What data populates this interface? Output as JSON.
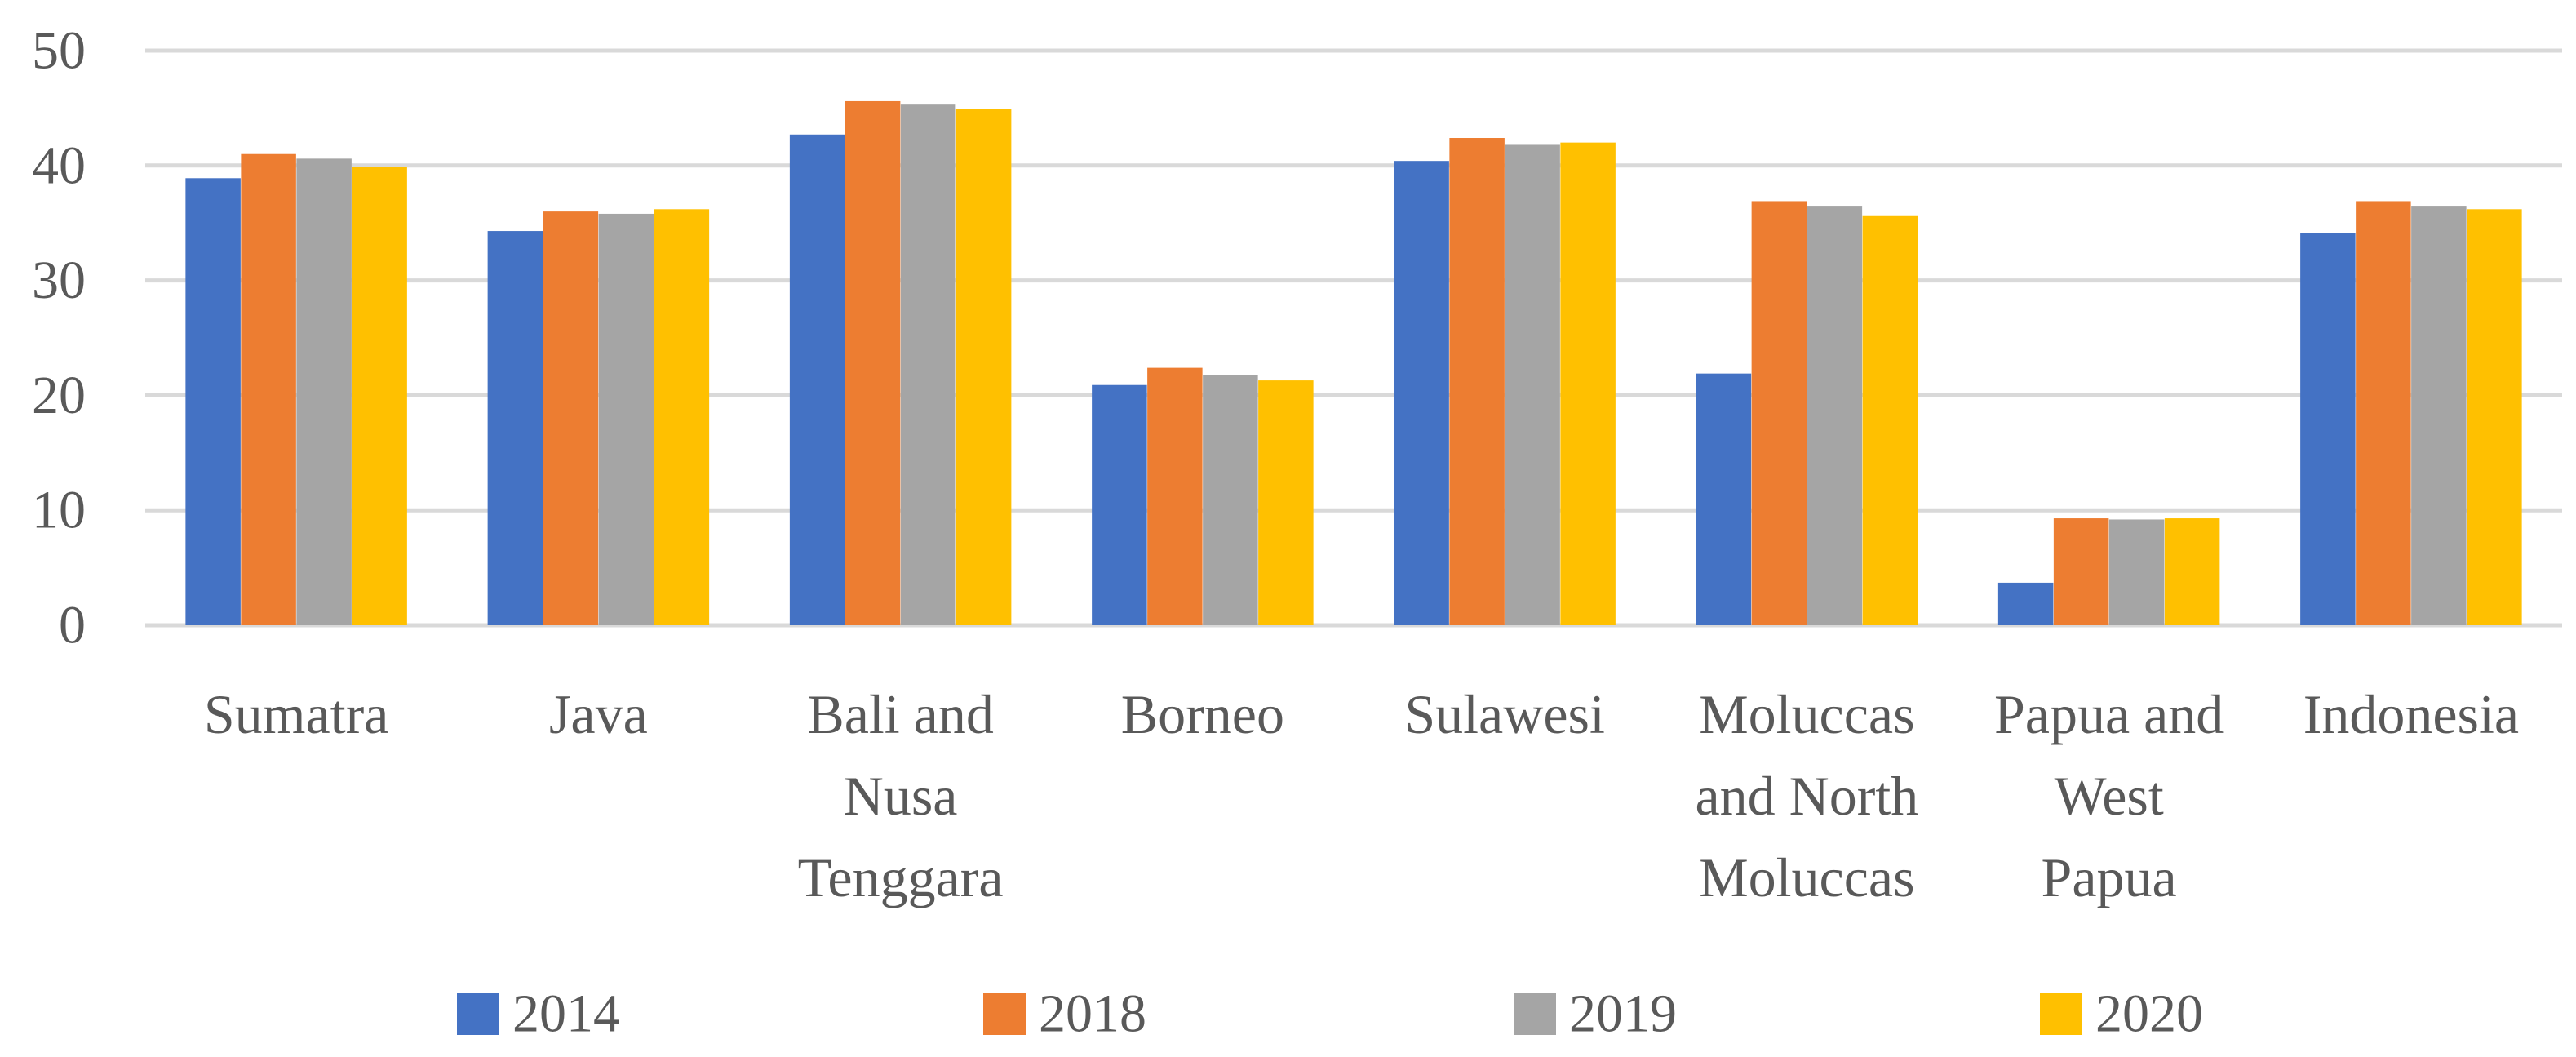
{
  "chart_data": {
    "type": "bar",
    "title": "",
    "xlabel": "",
    "ylabel": "",
    "ylim": [
      0,
      50
    ],
    "yticks": [
      "0",
      "10",
      "20",
      "30",
      "40",
      "50"
    ],
    "grid": true,
    "legend_position": "bottom",
    "categories": [
      [
        "Sumatra"
      ],
      [
        "Java"
      ],
      [
        "Bali and",
        "Nusa",
        "Tenggara"
      ],
      [
        "Borneo"
      ],
      [
        "Sulawesi"
      ],
      [
        "Moluccas",
        "and North",
        "Moluccas"
      ],
      [
        "Papua and",
        "West",
        "Papua"
      ],
      [
        "Indonesia"
      ]
    ],
    "series": [
      {
        "name": "2014",
        "color": "#4472C4",
        "values": [
          38.9,
          34.3,
          42.7,
          20.9,
          40.4,
          21.9,
          3.7,
          34.1
        ]
      },
      {
        "name": "2018",
        "color": "#ED7D31",
        "values": [
          41.0,
          36.0,
          45.6,
          22.4,
          42.4,
          36.9,
          9.3,
          36.9
        ]
      },
      {
        "name": "2019",
        "color": "#A5A5A5",
        "values": [
          40.6,
          35.8,
          45.3,
          21.8,
          41.8,
          36.5,
          9.2,
          36.5
        ]
      },
      {
        "name": "2020",
        "color": "#FFC000",
        "values": [
          39.9,
          36.2,
          44.9,
          21.3,
          42.0,
          35.6,
          9.3,
          36.2
        ]
      }
    ],
    "colors": {
      "gridline": "#D9D9D9",
      "text": "#595959",
      "background": "#FFFFFF"
    }
  }
}
